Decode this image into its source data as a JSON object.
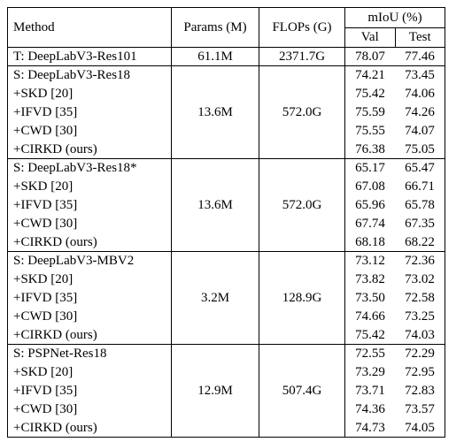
{
  "table": {
    "headers": {
      "method": "Method",
      "params": "Params (M)",
      "flops": "FLOPs (G)",
      "miou": "mIoU (%)",
      "val": "Val",
      "test": "Test"
    },
    "teacher": {
      "method": "T: DeepLabV3-Res101",
      "params": "61.1M",
      "flops": "2371.7G",
      "val": "78.07",
      "test": "77.46"
    },
    "groups": [
      {
        "params": "13.6M",
        "flops": "572.0G",
        "rows": [
          {
            "method": "S: DeepLabV3-Res18",
            "val": "74.21",
            "test": "73.45",
            "bold": false
          },
          {
            "method": "+SKD [20]",
            "val": "75.42",
            "test": "74.06",
            "bold": false
          },
          {
            "method": "+IFVD [35]",
            "val": "75.59",
            "test": "74.26",
            "bold": false
          },
          {
            "method": "+CWD [30]",
            "val": "75.55",
            "test": "74.07",
            "bold": false
          },
          {
            "method": "+CIRKD (ours)",
            "val": "76.38",
            "test": "75.05",
            "bold": true
          }
        ]
      },
      {
        "params": "13.6M",
        "flops": "572.0G",
        "rows": [
          {
            "method": "S: DeepLabV3-Res18*",
            "val": "65.17",
            "test": "65.47",
            "bold": false
          },
          {
            "method": "+SKD [20]",
            "val": "67.08",
            "test": "66.71",
            "bold": false
          },
          {
            "method": "+IFVD [35]",
            "val": "65.96",
            "test": "65.78",
            "bold": false
          },
          {
            "method": "+CWD [30]",
            "val": "67.74",
            "test": "67.35",
            "bold": false
          },
          {
            "method": "+CIRKD (ours)",
            "val": "68.18",
            "test": "68.22",
            "bold": true
          }
        ]
      },
      {
        "params": "3.2M",
        "flops": "128.9G",
        "rows": [
          {
            "method": "S: DeepLabV3-MBV2",
            "val": "73.12",
            "test": "72.36",
            "bold": false
          },
          {
            "method": "+SKD [20]",
            "val": "73.82",
            "test": "73.02",
            "bold": false
          },
          {
            "method": "+IFVD [35]",
            "val": "73.50",
            "test": "72.58",
            "bold": false
          },
          {
            "method": "+CWD [30]",
            "val": "74.66",
            "test": "73.25",
            "bold": false
          },
          {
            "method": "+CIRKD (ours)",
            "val": "75.42",
            "test": "74.03",
            "bold": true
          }
        ]
      },
      {
        "params": "12.9M",
        "flops": "507.4G",
        "rows": [
          {
            "method": "S: PSPNet-Res18",
            "val": "72.55",
            "test": "72.29",
            "bold": false
          },
          {
            "method": "+SKD [20]",
            "val": "73.29",
            "test": "72.95",
            "bold": false
          },
          {
            "method": "+IFVD [35]",
            "val": "73.71",
            "test": "72.83",
            "bold": false
          },
          {
            "method": "+CWD [30]",
            "val": "74.36",
            "test": "73.57",
            "bold": false
          },
          {
            "method": "+CIRKD (ours)",
            "val": "74.73",
            "test": "74.05",
            "bold": true
          }
        ]
      }
    ]
  }
}
